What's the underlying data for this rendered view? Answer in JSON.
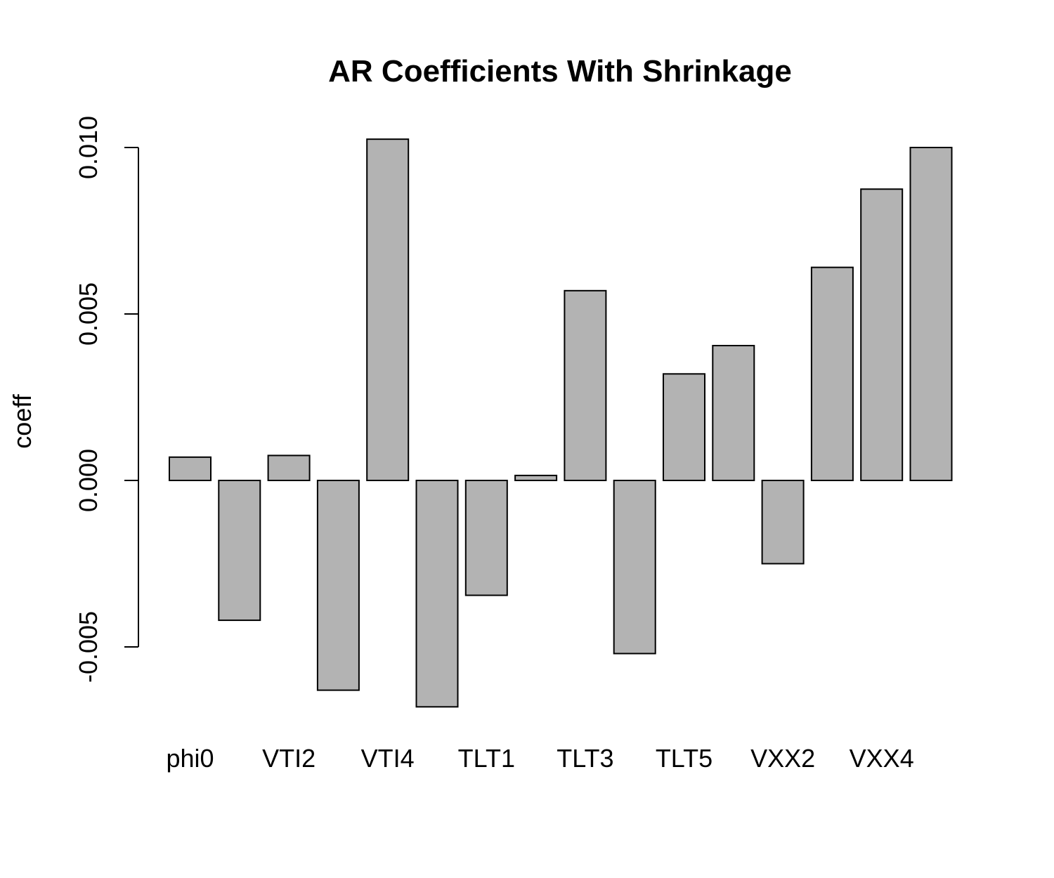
{
  "chart_data": {
    "type": "bar",
    "title": "AR Coefficients With Shrinkage",
    "xlabel": "",
    "ylabel": "coeff",
    "ylim": [
      -0.0065,
      0.0102
    ],
    "yticks": [
      "-0.005",
      "0.000",
      "0.005",
      "0.010"
    ],
    "ytick_values": [
      -0.005,
      0.0,
      0.005,
      0.01
    ],
    "grid": false,
    "legend": "none",
    "bar_color": "#b3b3b3",
    "categories": [
      "phi0",
      "",
      "VTI2",
      "",
      "VTI4",
      "",
      "TLT1",
      "",
      "TLT3",
      "",
      "TLT5",
      "",
      "VXX2",
      "",
      "VXX4",
      ""
    ],
    "values": [
      0.0007,
      -0.0042,
      0.00075,
      -0.0063,
      0.01025,
      -0.0068,
      -0.00345,
      0.00015,
      0.0057,
      -0.0052,
      0.0032,
      0.00405,
      -0.0025,
      0.0064,
      0.00875,
      0.01
    ]
  }
}
